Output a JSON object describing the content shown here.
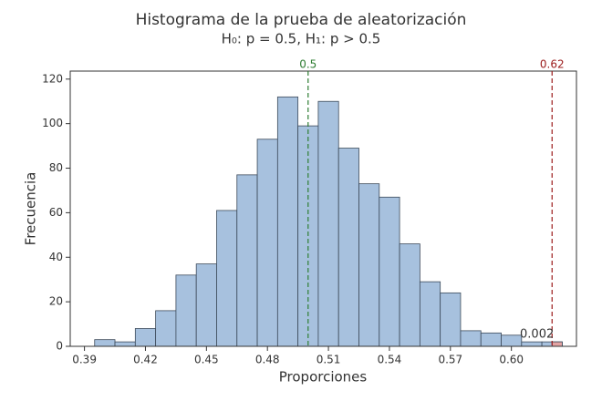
{
  "chart_data": {
    "type": "histogram",
    "title": "Histograma de la prueba de aleatorización",
    "subtitle": "H₀: p = 0.5, H₁: p > 0.5",
    "x_label": "Proporciones",
    "y_label": "Frecuencia",
    "bins": [
      0.395,
      0.405,
      0.415,
      0.425,
      0.435,
      0.445,
      0.455,
      0.465,
      0.475,
      0.485,
      0.495,
      0.505,
      0.515,
      0.525,
      0.535,
      0.545,
      0.555,
      0.565,
      0.575,
      0.585,
      0.595,
      0.605,
      0.615,
      0.625
    ],
    "counts": [
      3,
      2,
      8,
      16,
      32,
      37,
      61,
      77,
      93,
      112,
      99,
      110,
      89,
      73,
      67,
      46,
      29,
      24,
      7,
      6,
      5,
      2,
      2
    ],
    "color": "#a7c1de",
    "xlim": [
      0.383,
      0.632
    ],
    "xticks": [
      0.39,
      0.42,
      0.45,
      0.48,
      0.51,
      0.54,
      0.57,
      {
        "value": 0.6,
        "label": "0.60"
      }
    ],
    "ylim": [
      0,
      123.6
    ],
    "yticks": [
      0,
      20,
      40,
      60,
      80,
      100,
      120
    ],
    "reference_lines": [
      {
        "value": 0.5,
        "color": "#2e7d32"
      },
      {
        "value": 0.62,
        "color": "#9b1b1b"
      }
    ],
    "tail_color": "#e3a3a3",
    "annotation": "0.002"
  }
}
